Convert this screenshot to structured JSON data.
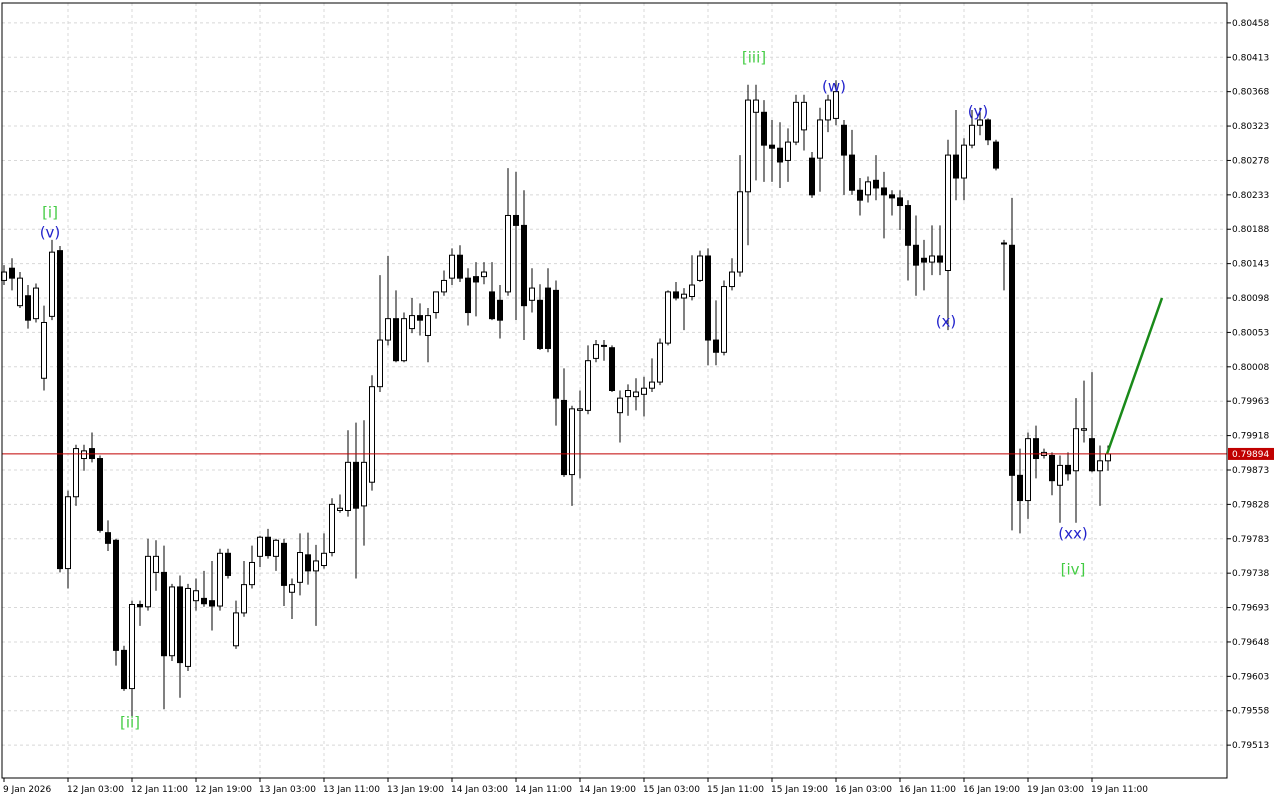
{
  "chart_data": {
    "type": "candlestick",
    "ylim": [
      0.7947,
      0.80484
    ],
    "yticks": [
      0.80458,
      0.80413,
      0.80368,
      0.80323,
      0.80278,
      0.80233,
      0.80188,
      0.80143,
      0.80098,
      0.80053,
      0.80008,
      0.79963,
      0.79918,
      0.79873,
      0.79828,
      0.79783,
      0.79738,
      0.79693,
      0.79648,
      0.79603,
      0.79558,
      0.79513
    ],
    "grid": true,
    "up_color": "#ffffff",
    "down_color": "#000000",
    "current_price": 0.79894,
    "current_price_color": "#c00000",
    "categories": [
      "9 Jan 2026",
      null,
      null,
      null,
      null,
      null,
      null,
      null,
      "12 Jan 03:00",
      null,
      null,
      null,
      null,
      null,
      null,
      null,
      "12 Jan 11:00",
      null,
      null,
      null,
      null,
      null,
      null,
      null,
      "12 Jan 19:00",
      null,
      null,
      null,
      null,
      null,
      null,
      null,
      "13 Jan 03:00",
      null,
      null,
      null,
      null,
      null,
      null,
      null,
      "13 Jan 11:00",
      null,
      null,
      null,
      null,
      null,
      null,
      null,
      "13 Jan 19:00",
      null,
      null,
      null,
      null,
      null,
      null,
      null,
      "14 Jan 03:00",
      null,
      null,
      null,
      null,
      null,
      null,
      null,
      "14 Jan 11:00",
      null,
      null,
      null,
      null,
      null,
      null,
      null,
      "14 Jan 19:00",
      null,
      null,
      null,
      null,
      null,
      null,
      null,
      "15 Jan 03:00",
      null,
      null,
      null,
      null,
      null,
      null,
      null,
      "15 Jan 11:00",
      null,
      null,
      null,
      null,
      null,
      null,
      null,
      "15 Jan 19:00",
      null,
      null,
      null,
      null,
      null,
      null,
      null,
      "16 Jan 03:00",
      null,
      null,
      null,
      null,
      null,
      null,
      null,
      "16 Jan 11:00",
      null,
      null,
      null,
      null,
      null,
      null,
      null,
      "16 Jan 19:00",
      null,
      null,
      null,
      null,
      null,
      null,
      null,
      "19 Jan 03:00",
      null,
      null,
      null,
      null,
      null,
      null,
      null,
      "19 Jan 11:00",
      null,
      null
    ],
    "ohlc": [
      [
        0.80121,
        0.80141,
        0.80115,
        0.80132
      ],
      [
        0.80137,
        0.8015,
        0.80108,
        0.80124
      ],
      [
        0.80088,
        0.80132,
        0.80085,
        0.80124
      ],
      [
        0.80101,
        0.80115,
        0.80058,
        0.80069
      ],
      [
        0.80071,
        0.80117,
        0.80066,
        0.80111
      ],
      [
        0.79993,
        0.80088,
        0.79977,
        0.80066
      ],
      [
        0.80074,
        0.80174,
        0.80069,
        0.80158
      ],
      [
        0.8016,
        0.80166,
        0.79739,
        0.79744
      ],
      [
        0.79744,
        0.79846,
        0.79718,
        0.79838
      ],
      [
        0.79838,
        0.79906,
        0.79826,
        0.79901
      ],
      [
        0.79888,
        0.79906,
        0.79872,
        0.79898
      ],
      [
        0.79901,
        0.79922,
        0.79883,
        0.79888
      ],
      [
        0.79888,
        0.79892,
        0.79791,
        0.79794
      ],
      [
        0.79791,
        0.79807,
        0.79767,
        0.79777
      ],
      [
        0.79781,
        0.79783,
        0.79617,
        0.79637
      ],
      [
        0.79637,
        0.79643,
        0.79584,
        0.79587
      ],
      [
        0.79587,
        0.79702,
        0.79551,
        0.79697
      ],
      [
        0.79697,
        0.79702,
        0.79669,
        0.79694
      ],
      [
        0.79694,
        0.79783,
        0.79689,
        0.7976
      ],
      [
        0.79739,
        0.79781,
        0.79715,
        0.7976
      ],
      [
        0.79739,
        0.79774,
        0.7956,
        0.7963
      ],
      [
        0.7963,
        0.79724,
        0.79623,
        0.7972
      ],
      [
        0.7972,
        0.79735,
        0.79575,
        0.79621
      ],
      [
        0.79616,
        0.79724,
        0.7961,
        0.79718
      ],
      [
        0.79702,
        0.79731,
        0.79689,
        0.79715
      ],
      [
        0.79705,
        0.79741,
        0.79694,
        0.79698
      ],
      [
        0.79702,
        0.79754,
        0.79663,
        0.79695
      ],
      [
        0.79695,
        0.7977,
        0.79689,
        0.79764
      ],
      [
        0.79764,
        0.7977,
        0.79731,
        0.79735
      ],
      [
        0.79643,
        0.79702,
        0.79639,
        0.79686
      ],
      [
        0.79686,
        0.79754,
        0.79681,
        0.79723
      ],
      [
        0.79723,
        0.79774,
        0.79718,
        0.79752
      ],
      [
        0.7976,
        0.79787,
        0.79746,
        0.79785
      ],
      [
        0.79785,
        0.79796,
        0.79757,
        0.79761
      ],
      [
        0.7976,
        0.79783,
        0.79741,
        0.79781
      ],
      [
        0.79777,
        0.79783,
        0.79695,
        0.79722
      ],
      [
        0.79713,
        0.79731,
        0.79678,
        0.79723
      ],
      [
        0.79726,
        0.7979,
        0.79709,
        0.79765
      ],
      [
        0.79762,
        0.79791,
        0.79723,
        0.79741
      ],
      [
        0.79741,
        0.79775,
        0.79669,
        0.79754
      ],
      [
        0.79748,
        0.7979,
        0.79744,
        0.79764
      ],
      [
        0.79765,
        0.79836,
        0.7976,
        0.79828
      ],
      [
        0.7982,
        0.79841,
        0.79817,
        0.79823
      ],
      [
        0.7982,
        0.79925,
        0.79812,
        0.79883
      ],
      [
        0.79883,
        0.79935,
        0.79731,
        0.79823
      ],
      [
        0.79826,
        0.79938,
        0.79774,
        0.79883
      ],
      [
        0.79857,
        0.79997,
        0.79846,
        0.79982
      ],
      [
        0.79982,
        0.80128,
        0.79975,
        0.80043
      ],
      [
        0.80043,
        0.80153,
        0.80036,
        0.80071
      ],
      [
        0.80071,
        0.80108,
        0.80014,
        0.80016
      ],
      [
        0.80016,
        0.80079,
        0.80014,
        0.80071
      ],
      [
        0.80058,
        0.80098,
        0.80052,
        0.80075
      ],
      [
        0.80075,
        0.80091,
        0.80049,
        0.80069
      ],
      [
        0.80049,
        0.80085,
        0.80014,
        0.80075
      ],
      [
        0.80079,
        0.80106,
        0.80071,
        0.80106
      ],
      [
        0.80106,
        0.80134,
        0.80101,
        0.80121
      ],
      [
        0.80124,
        0.80163,
        0.80115,
        0.80154
      ],
      [
        0.80154,
        0.80167,
        0.80119,
        0.80124
      ],
      [
        0.80124,
        0.80137,
        0.80062,
        0.80079
      ],
      [
        0.80126,
        0.80145,
        0.80074,
        0.80119
      ],
      [
        0.80126,
        0.80145,
        0.80116,
        0.80132
      ],
      [
        0.80106,
        0.80145,
        0.80069,
        0.80071
      ],
      [
        0.80095,
        0.80115,
        0.80045,
        0.80069
      ],
      [
        0.80106,
        0.80268,
        0.80101,
        0.80206
      ],
      [
        0.80206,
        0.80263,
        0.80069,
        0.80193
      ],
      [
        0.80193,
        0.80239,
        0.80043,
        0.80088
      ],
      [
        0.80095,
        0.80137,
        0.80079,
        0.80111
      ],
      [
        0.80095,
        0.80116,
        0.8003,
        0.80032
      ],
      [
        0.80111,
        0.80137,
        0.80027,
        0.80032
      ],
      [
        0.80108,
        0.80121,
        0.79931,
        0.79967
      ],
      [
        0.79964,
        0.80006,
        0.79864,
        0.79867
      ],
      [
        0.79867,
        0.79957,
        0.79826,
        0.79953
      ],
      [
        0.79951,
        0.79977,
        0.79862,
        0.79953
      ],
      [
        0.79951,
        0.80036,
        0.79946,
        0.80016
      ],
      [
        0.80019,
        0.80043,
        0.80014,
        0.80037
      ],
      [
        0.80035,
        0.80043,
        0.80016,
        0.80036
      ],
      [
        0.80033,
        0.80036,
        0.79975,
        0.79977
      ],
      [
        0.79948,
        0.79977,
        0.79909,
        0.79967
      ],
      [
        0.79969,
        0.79985,
        0.79944,
        0.79977
      ],
      [
        0.79969,
        0.79993,
        0.79951,
        0.79975
      ],
      [
        0.79972,
        0.79995,
        0.79943,
        0.7998
      ],
      [
        0.7998,
        0.80019,
        0.79975,
        0.79988
      ],
      [
        0.79988,
        0.80045,
        0.79984,
        0.80039
      ],
      [
        0.80039,
        0.80108,
        0.80036,
        0.80106
      ],
      [
        0.80106,
        0.80119,
        0.80095,
        0.80098
      ],
      [
        0.80098,
        0.80111,
        0.80056,
        0.80103
      ],
      [
        0.801,
        0.80154,
        0.80095,
        0.80115
      ],
      [
        0.80121,
        0.8016,
        0.80119,
        0.80153
      ],
      [
        0.80153,
        0.80163,
        0.8001,
        0.80043
      ],
      [
        0.80043,
        0.80095,
        0.8001,
        0.80027
      ],
      [
        0.80027,
        0.80121,
        0.80023,
        0.80113
      ],
      [
        0.80113,
        0.8015,
        0.80108,
        0.80132
      ],
      [
        0.80132,
        0.80285,
        0.80126,
        0.80237
      ],
      [
        0.80237,
        0.80377,
        0.80167,
        0.80357
      ],
      [
        0.80341,
        0.80377,
        0.80252,
        0.80357
      ],
      [
        0.80341,
        0.80357,
        0.8025,
        0.80298
      ],
      [
        0.80298,
        0.80331,
        0.8025,
        0.80294
      ],
      [
        0.80294,
        0.80328,
        0.80242,
        0.80276
      ],
      [
        0.80278,
        0.8032,
        0.8025,
        0.80302
      ],
      [
        0.80302,
        0.80364,
        0.80298,
        0.80354
      ],
      [
        0.80318,
        0.80364,
        0.80291,
        0.80354
      ],
      [
        0.80281,
        0.80289,
        0.80229,
        0.80233
      ],
      [
        0.80281,
        0.80347,
        0.80237,
        0.80331
      ],
      [
        0.80331,
        0.80364,
        0.80315,
        0.80357
      ],
      [
        0.80333,
        0.80383,
        0.80324,
        0.80368
      ],
      [
        0.80324,
        0.80331,
        0.80233,
        0.80285
      ],
      [
        0.80285,
        0.80318,
        0.80233,
        0.80239
      ],
      [
        0.80239,
        0.80255,
        0.80206,
        0.80226
      ],
      [
        0.80233,
        0.80257,
        0.80223,
        0.8025
      ],
      [
        0.80252,
        0.80285,
        0.80226,
        0.80242
      ],
      [
        0.80242,
        0.80263,
        0.80176,
        0.80233
      ],
      [
        0.80233,
        0.80239,
        0.80206,
        0.80229
      ],
      [
        0.80229,
        0.80239,
        0.80187,
        0.80219
      ],
      [
        0.80219,
        0.80226,
        0.80121,
        0.80167
      ],
      [
        0.80167,
        0.80206,
        0.80101,
        0.80141
      ],
      [
        0.8015,
        0.80174,
        0.80108,
        0.80145
      ],
      [
        0.80145,
        0.80193,
        0.80128,
        0.80153
      ],
      [
        0.80153,
        0.80193,
        0.80128,
        0.80145
      ],
      [
        0.80134,
        0.80305,
        0.80056,
        0.80285
      ],
      [
        0.80285,
        0.80344,
        0.80226,
        0.80255
      ],
      [
        0.80255,
        0.80307,
        0.80226,
        0.80298
      ],
      [
        0.80298,
        0.80344,
        0.80294,
        0.80324
      ],
      [
        0.80324,
        0.80347,
        0.80311,
        0.80331
      ],
      [
        0.80331,
        0.80333,
        0.80298,
        0.80305
      ],
      [
        0.80302,
        0.80305,
        0.80265,
        0.80268
      ],
      [
        0.8017,
        0.80174,
        0.80108,
        0.8017
      ],
      [
        0.80167,
        0.80229,
        0.79794,
        0.79866
      ],
      [
        0.79866,
        0.79901,
        0.7979,
        0.79833
      ],
      [
        0.79833,
        0.79922,
        0.79809,
        0.79914
      ],
      [
        0.79914,
        0.79931,
        0.79862,
        0.79888
      ],
      [
        0.79892,
        0.79901,
        0.79888,
        0.79896
      ],
      [
        0.79892,
        0.79896,
        0.7984,
        0.79859
      ],
      [
        0.79853,
        0.79892,
        0.79804,
        0.79879
      ],
      [
        0.79879,
        0.79896,
        0.79859,
        0.79868
      ],
      [
        0.79872,
        0.79967,
        0.79804,
        0.79927
      ],
      [
        0.79925,
        0.7999,
        0.79909,
        0.79927
      ],
      [
        0.79914,
        0.80001,
        0.7987,
        0.79872
      ],
      [
        0.79872,
        0.79905,
        0.79826,
        0.79885
      ],
      [
        0.79885,
        0.79905,
        0.79872,
        0.79894
      ]
    ],
    "annotations": [
      {
        "text": "[i]",
        "color": "#44cc44"
      },
      {
        "text": "(v)",
        "color": "#2222cc"
      },
      {
        "text": "[ii]",
        "color": "#44cc44"
      },
      {
        "text": "[iii]",
        "color": "#44cc44"
      },
      {
        "text": "(w)",
        "color": "#2222cc"
      },
      {
        "text": "(x)",
        "color": "#2222cc"
      },
      {
        "text": "(y)",
        "color": "#2222cc"
      },
      {
        "text": "(xx)",
        "color": "#2222cc"
      },
      {
        "text": "[iv]",
        "color": "#44cc44"
      }
    ]
  }
}
